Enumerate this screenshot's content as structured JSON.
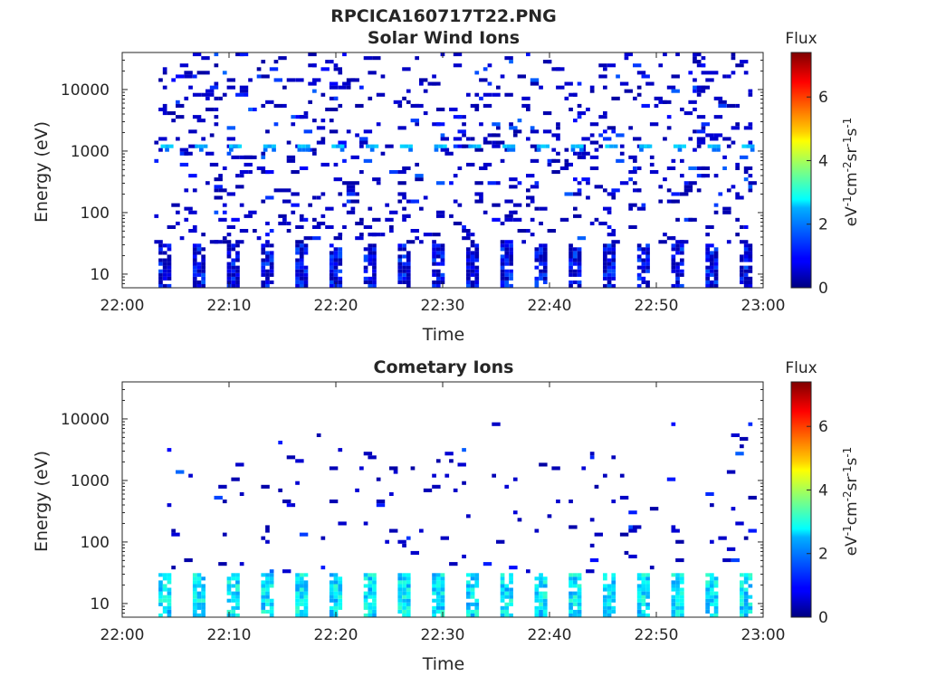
{
  "figure_title": "RPCICA160717T22.PNG",
  "colors": {
    "colormap": "jet",
    "axis": "#262626"
  },
  "chart_data": [
    {
      "type": "heatmap",
      "title": "Solar Wind Ions",
      "xlabel": "Time",
      "ylabel": "Energy (eV)",
      "x_ticks": [
        "22:00",
        "22:10",
        "22:20",
        "22:30",
        "22:40",
        "22:50",
        "23:00"
      ],
      "x_range": [
        "22:00",
        "23:00"
      ],
      "y_scale": "log",
      "y_range": [
        6,
        40000
      ],
      "y_ticks": [
        10,
        100,
        1000,
        10000
      ],
      "y_tick_labels": [
        "10",
        "100",
        "1000",
        "10000"
      ],
      "colorbar": {
        "title": "Flux",
        "label": "eV-1cm-2sr-1s-1",
        "range": [
          0,
          7.4
        ],
        "ticks": [
          "0",
          "2",
          "4",
          "6"
        ]
      },
      "bands": [
        {
          "energy_eV": 1150,
          "flux": 2.3,
          "description": "repeating burst near 1000 eV"
        },
        {
          "energy_eV": 18,
          "flux": 1.0,
          "description": "low-energy blocks 6-30 eV"
        }
      ],
      "pattern": {
        "first_time": "22:03",
        "last_time": "22:59",
        "period_min": 3.2,
        "pulse_min": 1.2
      }
    },
    {
      "type": "heatmap",
      "title": "Cometary Ions",
      "xlabel": "Time",
      "ylabel": "Energy (eV)",
      "x_ticks": [
        "22:00",
        "22:10",
        "22:20",
        "22:30",
        "22:40",
        "22:50",
        "23:00"
      ],
      "x_range": [
        "22:00",
        "23:00"
      ],
      "y_scale": "log",
      "y_range": [
        6,
        40000
      ],
      "y_ticks": [
        10,
        100,
        1000,
        10000
      ],
      "y_tick_labels": [
        "10",
        "100",
        "1000",
        "10000"
      ],
      "colorbar": {
        "title": "Flux",
        "label": "eV-1cm-2sr-1s-1",
        "range": [
          0,
          7.4
        ],
        "ticks": [
          "0",
          "2",
          "4",
          "6"
        ]
      },
      "bands": [
        {
          "energy_eV": 14,
          "flux": 2.6,
          "description": "low-energy blocks 6-30 eV"
        }
      ],
      "pattern": {
        "first_time": "22:03",
        "last_time": "22:59",
        "period_min": 3.2,
        "pulse_min": 1.2
      }
    }
  ]
}
